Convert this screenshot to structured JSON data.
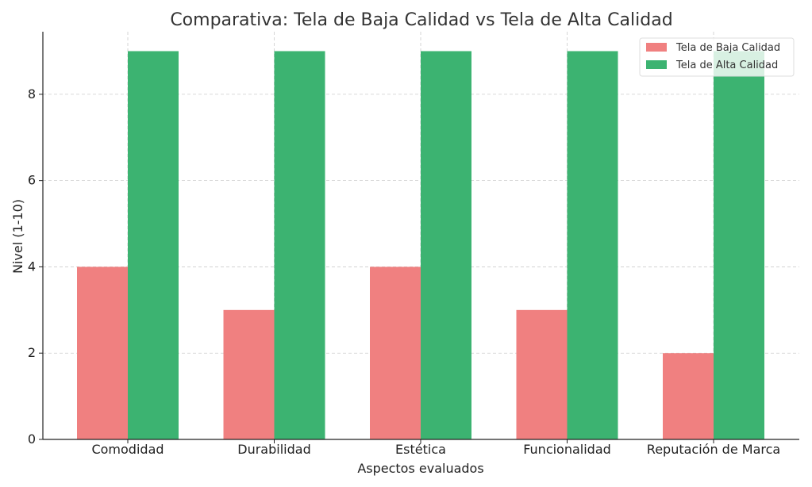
{
  "chart_data": {
    "type": "bar",
    "title": "Comparativa: Tela de Baja Calidad vs Tela de Alta Calidad",
    "xlabel": "Aspectos evaluados",
    "ylabel": "Nivel (1-10)",
    "categories": [
      "Comodidad",
      "Durabilidad",
      "Estética",
      "Funcionalidad",
      "Reputación de Marca"
    ],
    "series": [
      {
        "name": "Tela de Baja Calidad",
        "color": "#f08080",
        "values": [
          4,
          3,
          4,
          3,
          2
        ]
      },
      {
        "name": "Tela de Alta Calidad",
        "color": "#3cb371",
        "values": [
          9,
          9,
          9,
          9,
          9
        ]
      }
    ],
    "ylim": [
      0,
      9.45
    ],
    "yticks": [
      0,
      2,
      4,
      6,
      8
    ],
    "grid": true,
    "legend": "top-right"
  }
}
